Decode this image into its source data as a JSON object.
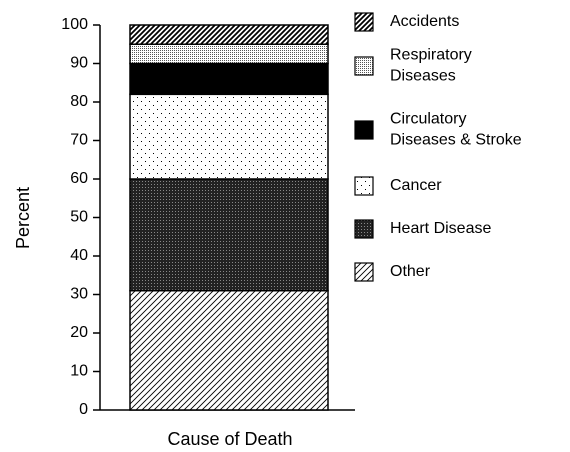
{
  "chart_data": {
    "type": "stacked-bar",
    "categories": [
      null
    ],
    "xlabel": "Cause of Death",
    "ylabel": "Percent",
    "series": [
      {
        "name": "Other",
        "color": "#000000",
        "pattern": "thin-hatch",
        "values": [
          31
        ]
      },
      {
        "name": "Heart Disease",
        "color": "#000000",
        "pattern": "dense-dots",
        "values": [
          29
        ]
      },
      {
        "name": "Cancer",
        "color": "#000000",
        "pattern": "sparse-dots",
        "values": [
          22
        ]
      },
      {
        "name": "Circulatory\nDiseases & Stroke",
        "color": "#000000",
        "pattern": "solid",
        "values": [
          8
        ]
      },
      {
        "name": "Respiratory\nDiseases",
        "color": "#000000",
        "pattern": "fine-dots",
        "values": [
          5
        ]
      },
      {
        "name": "Accidents",
        "color": "#000000",
        "pattern": "thick-hatch",
        "values": [
          5
        ]
      }
    ],
    "ylim": [
      0,
      100
    ],
    "yticks": [
      0,
      10,
      20,
      30,
      40,
      50,
      60,
      70,
      80,
      90,
      100
    ],
    "grid": false,
    "legend": "right"
  }
}
